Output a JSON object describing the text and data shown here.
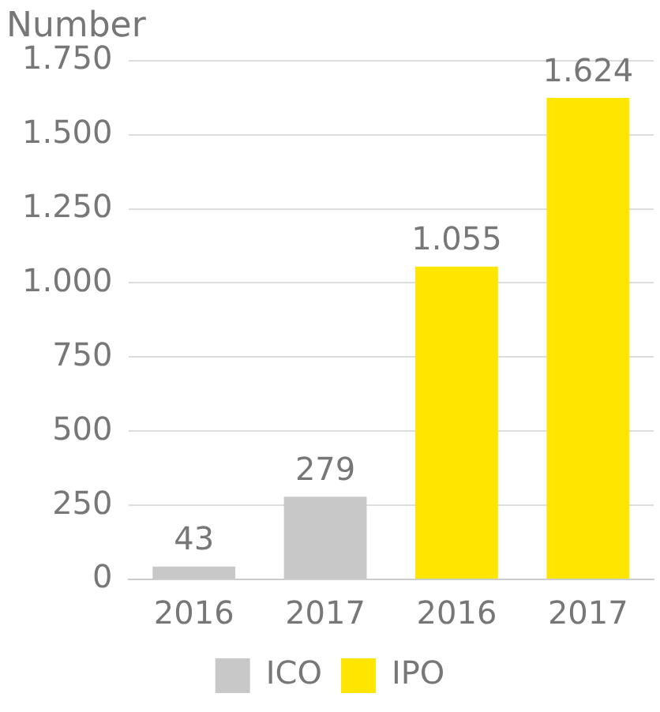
{
  "chart_data": {
    "type": "bar",
    "title": "Number",
    "categories": [
      "2016",
      "2017",
      "2016",
      "2017"
    ],
    "series": [
      {
        "name": "ICO",
        "color": "#c8c8c8",
        "values": [
          43,
          279,
          null,
          null
        ],
        "value_labels": [
          "43",
          "279",
          null,
          null
        ]
      },
      {
        "name": "IPO",
        "color": "#ffe600",
        "values": [
          null,
          null,
          1055,
          1624
        ],
        "value_labels": [
          null,
          null,
          "1.055",
          "1.624"
        ]
      }
    ],
    "stacked": true,
    "ylim": [
      0,
      1750
    ],
    "yticks": [
      0,
      250,
      500,
      750,
      {
        "value": 1000,
        "label": "1.000"
      },
      {
        "value": 1250,
        "label": "1.250"
      },
      {
        "value": 1500,
        "label": "1.500"
      },
      {
        "value": 1750,
        "label": "1.750"
      }
    ],
    "grid": "y",
    "legend": "bottom"
  }
}
